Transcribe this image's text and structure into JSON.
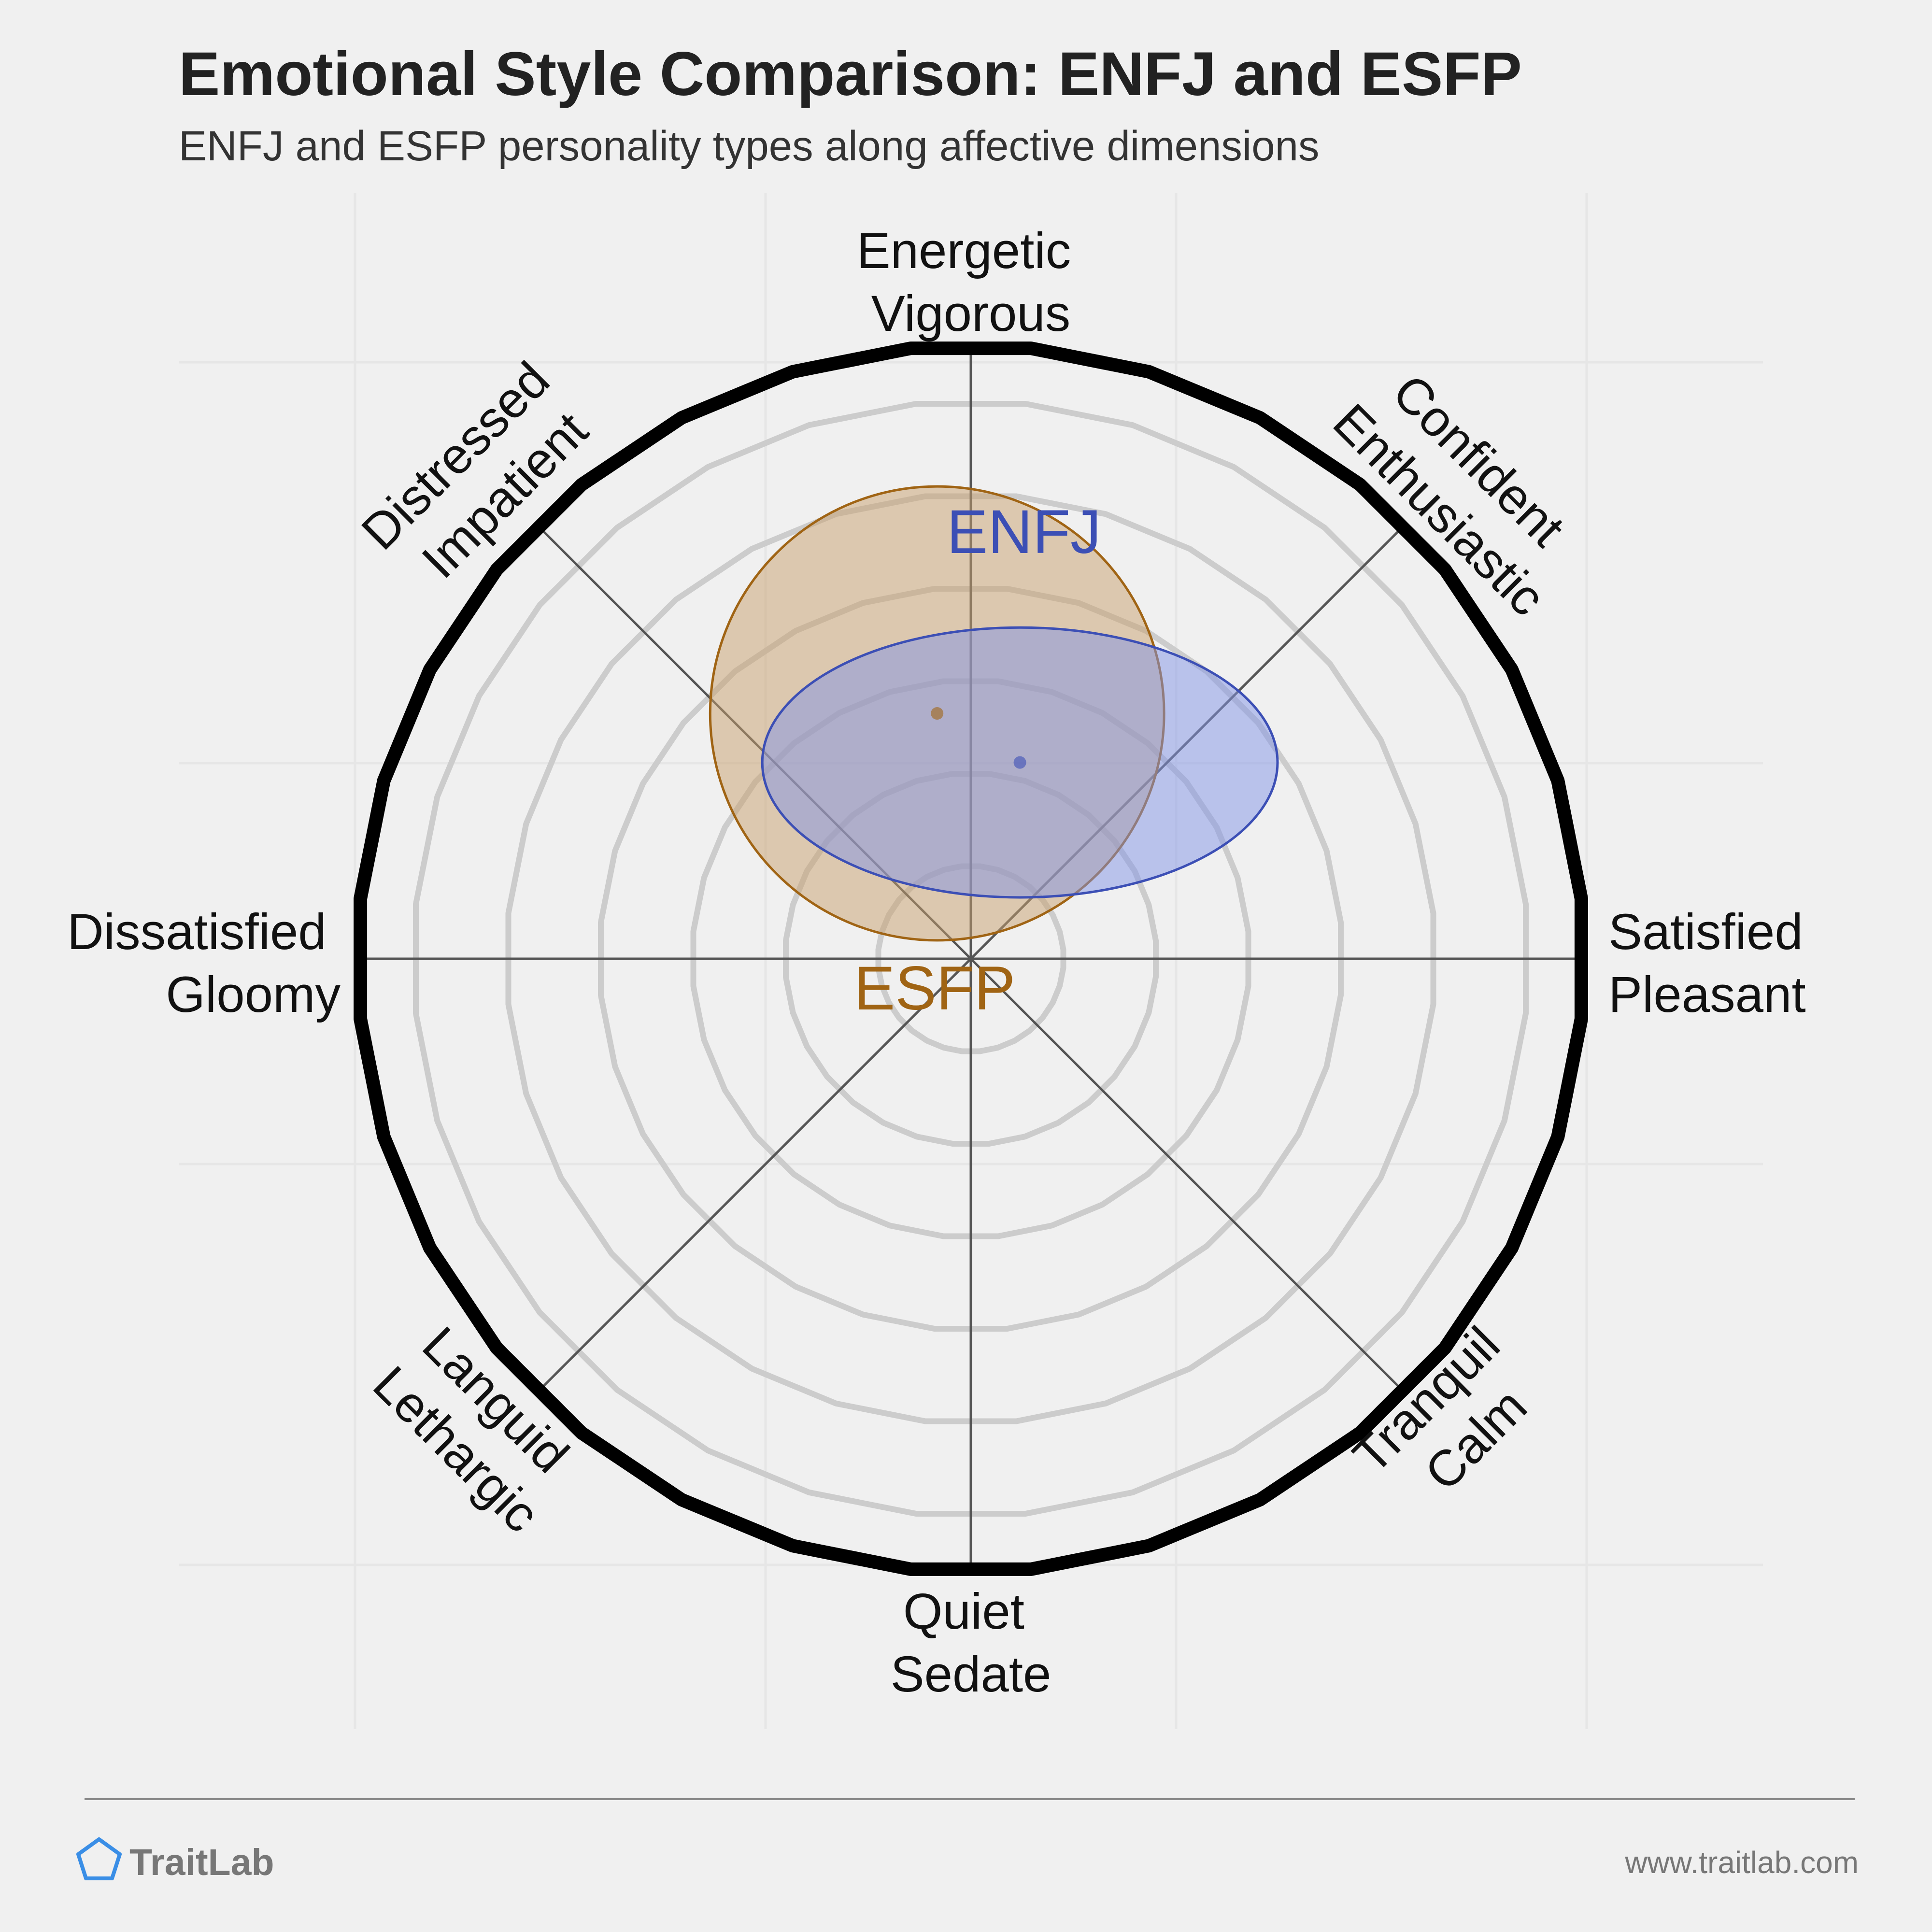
{
  "title": "Emotional Style Comparison: ENFJ and ESFP",
  "subtitle": "ENFJ and ESFP personality types along affective dimensions",
  "brand": {
    "name": "TraitLab",
    "url": "www.traitlab.com",
    "logo_icon": "pentagon-icon",
    "logo_color": "#3a8ee6"
  },
  "chart_data": {
    "type": "scatter",
    "subtype": "circumplex",
    "axes": [
      {
        "direction": "top",
        "labels": [
          "Energetic",
          "Vigorous"
        ]
      },
      {
        "direction": "top-right",
        "labels": [
          "Confident",
          "Enthusiastic"
        ]
      },
      {
        "direction": "right",
        "labels": [
          "Satisfied",
          "Pleasant"
        ]
      },
      {
        "direction": "bottom-right",
        "labels": [
          "Tranquil",
          "Calm"
        ]
      },
      {
        "direction": "bottom",
        "labels": [
          "Quiet",
          "Sedate"
        ]
      },
      {
        "direction": "bottom-left",
        "labels": [
          "Languid",
          "Lethargic"
        ]
      },
      {
        "direction": "left",
        "labels": [
          "Dissatisfied",
          "Gloomy"
        ]
      },
      {
        "direction": "top-left",
        "labels": [
          "Distressed",
          "Impatient"
        ]
      }
    ],
    "x_range": [
      -1,
      1
    ],
    "y_range": [
      -1,
      1
    ],
    "rings": 6,
    "series": [
      {
        "name": "ENFJ",
        "center": [
          0.08,
          0.32
        ],
        "radius": [
          0.42,
          0.22
        ],
        "color": "#3c4fb5",
        "fill": "#8293e6"
      },
      {
        "name": "ESFP",
        "center": [
          -0.055,
          0.4
        ],
        "radius": [
          0.37,
          0.37
        ],
        "color": "#a06414",
        "fill": "#c8a06e"
      }
    ]
  }
}
